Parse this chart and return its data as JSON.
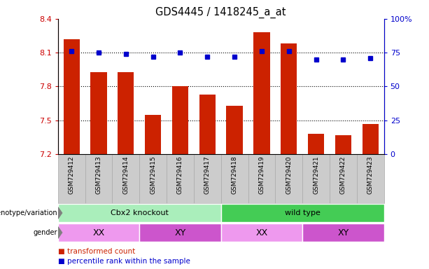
{
  "title": "GDS4445 / 1418245_a_at",
  "samples": [
    "GSM729412",
    "GSM729413",
    "GSM729414",
    "GSM729415",
    "GSM729416",
    "GSM729417",
    "GSM729418",
    "GSM729419",
    "GSM729420",
    "GSM729421",
    "GSM729422",
    "GSM729423"
  ],
  "bar_values": [
    8.22,
    7.93,
    7.93,
    7.55,
    7.8,
    7.73,
    7.63,
    8.28,
    8.18,
    7.38,
    7.37,
    7.47
  ],
  "dot_values": [
    76,
    75,
    74,
    72,
    75,
    72,
    72,
    76,
    76,
    70,
    70,
    71
  ],
  "ylim_left": [
    7.2,
    8.4
  ],
  "ylim_right": [
    0,
    100
  ],
  "yticks_left": [
    7.2,
    7.5,
    7.8,
    8.1,
    8.4
  ],
  "yticks_right": [
    0,
    25,
    50,
    75,
    100
  ],
  "hlines": [
    7.5,
    7.8,
    8.1
  ],
  "bar_color": "#cc2200",
  "dot_color": "#0000cc",
  "bar_width": 0.6,
  "genotype_groups": [
    {
      "label": "Cbx2 knockout",
      "start": 0,
      "end": 6,
      "color": "#aaeebb"
    },
    {
      "label": "wild type",
      "start": 6,
      "end": 12,
      "color": "#44cc55"
    }
  ],
  "gender_groups": [
    {
      "label": "XX",
      "start": 0,
      "end": 3,
      "color": "#ee99ee"
    },
    {
      "label": "XY",
      "start": 3,
      "end": 6,
      "color": "#cc55cc"
    },
    {
      "label": "XX",
      "start": 6,
      "end": 9,
      "color": "#ee99ee"
    },
    {
      "label": "XY",
      "start": 9,
      "end": 12,
      "color": "#cc55cc"
    }
  ],
  "legend_items": [
    {
      "label": "transformed count",
      "color": "#cc2200"
    },
    {
      "label": "percentile rank within the sample",
      "color": "#0000cc"
    }
  ],
  "left_color": "#cc0000",
  "right_color": "#0000cc",
  "bg_color": "#ffffff",
  "xtick_bg": "#cccccc",
  "xtick_edge": "#aaaaaa"
}
